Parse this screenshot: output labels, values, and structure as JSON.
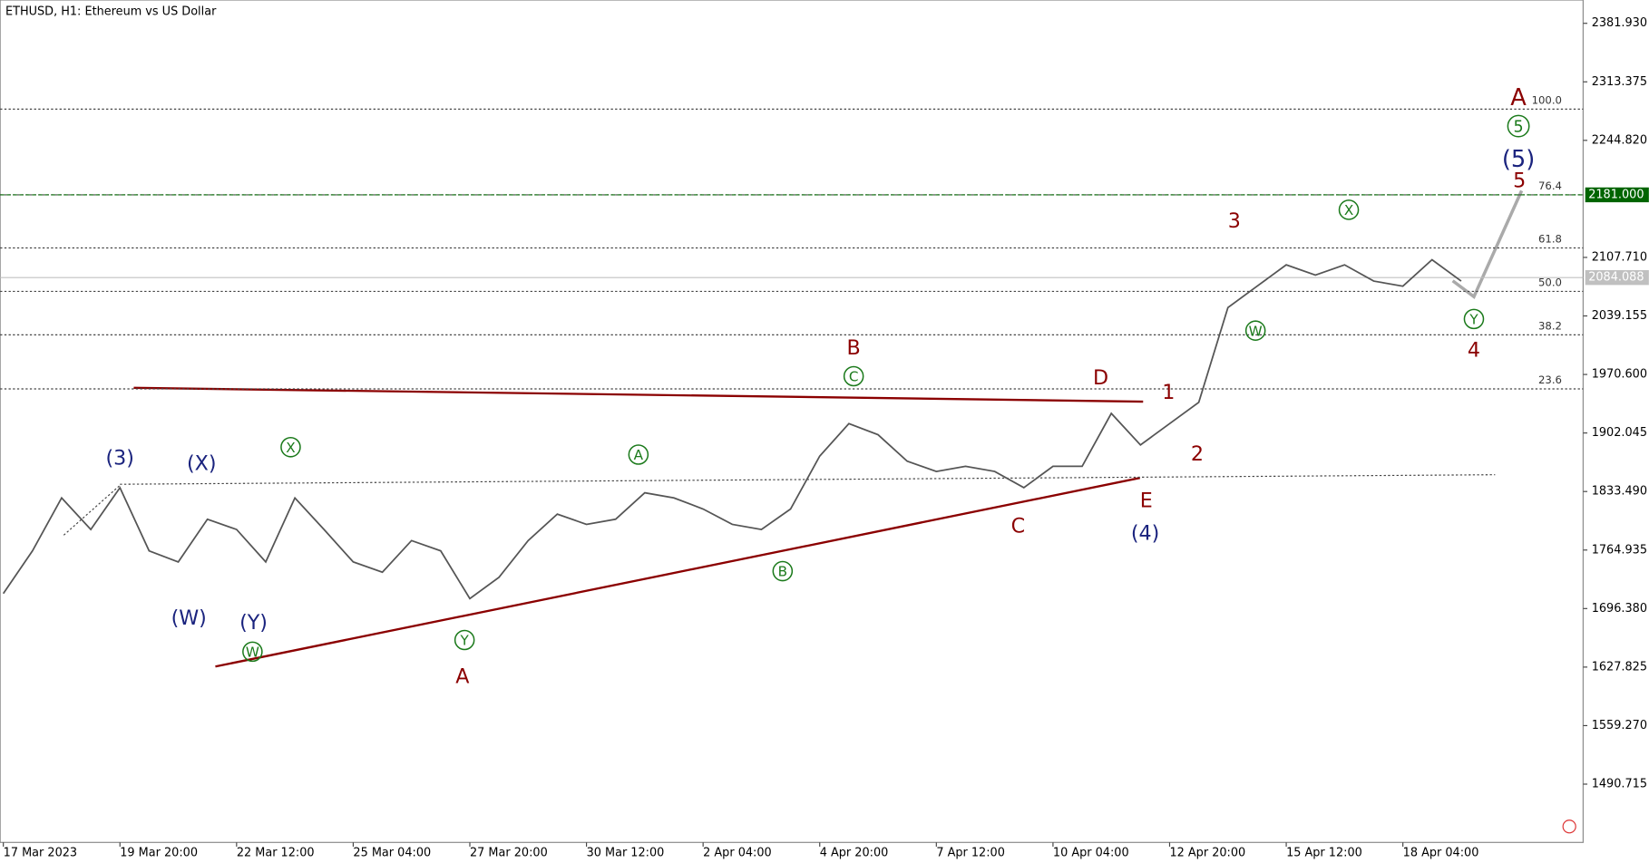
{
  "chart_data": {
    "type": "line",
    "title": "ETHUSD, H1:  Ethereum vs US Dollar",
    "categories": [
      "17 Mar 2023",
      null,
      null,
      null,
      "19 Mar 20:00",
      null,
      null,
      null,
      "22 Mar 12:00",
      null,
      null,
      null,
      "25 Mar 04:00",
      null,
      null,
      null,
      "27 Mar 20:00",
      null,
      null,
      null,
      "30 Mar 12:00",
      null,
      null,
      null,
      "2 Apr 04:00",
      null,
      null,
      null,
      "4 Apr 20:00",
      null,
      null,
      null,
      "7 Apr 12:00",
      null,
      null,
      null,
      "10 Apr 04:00",
      null,
      null,
      null,
      "12 Apr 20:00",
      null,
      null,
      null,
      "15 Apr 12:00",
      null,
      null,
      null,
      "18 Apr 04:00",
      null,
      null
    ],
    "series": [
      {
        "name": "ETHUSD",
        "color": "#555555",
        "values": [
          1714,
          1764,
          1826,
          1789,
          1838,
          1764,
          1751,
          1801,
          1789,
          1751,
          1826,
          1789,
          1751,
          1739,
          1776,
          1764,
          1708,
          1733,
          1776,
          1807,
          1795,
          1801,
          1832,
          1826,
          1813,
          1795,
          1789,
          1813,
          1875,
          1913,
          1900,
          1869,
          1857,
          1863,
          1857,
          1838,
          1863,
          1863,
          1925,
          1888,
          1913,
          1938,
          2049,
          2074,
          2099,
          2087,
          2099,
          2080,
          2074,
          2105,
          2080
        ]
      }
    ],
    "ylim": [
      1422.44,
      2409.24
    ],
    "yticks": [
      {
        "value": 2381.93,
        "label": "2381.930"
      },
      {
        "value": 2313.375,
        "label": "2313.375"
      },
      {
        "value": 2244.82,
        "label": "2244.820"
      },
      {
        "value": 2107.71,
        "label": "2107.710"
      },
      {
        "value": 2039.155,
        "label": "2039.155"
      },
      {
        "value": 1970.6,
        "label": "1970.600"
      },
      {
        "value": 1902.045,
        "label": "1902.045"
      },
      {
        "value": 1833.49,
        "label": "1833.490"
      },
      {
        "value": 1764.935,
        "label": "1764.935"
      },
      {
        "value": 1696.38,
        "label": "1696.380"
      },
      {
        "value": 1627.825,
        "label": "1627.825"
      },
      {
        "value": 1559.27,
        "label": "1559.270"
      },
      {
        "value": 1490.715,
        "label": "1490.715"
      }
    ],
    "fib_levels": [
      {
        "label": "100.0",
        "price": 2281.4
      },
      {
        "label": "76.4",
        "price": 2181.0
      },
      {
        "label": "61.8",
        "price": 2118.8
      },
      {
        "label": "50.0",
        "price": 2067.9
      },
      {
        "label": "38.2",
        "price": 2017.0
      },
      {
        "label": "23.6",
        "price": 1953.7
      }
    ],
    "price_labels": [
      {
        "value": 2181,
        "label": "2181.000",
        "color": "#006400"
      },
      {
        "value": 2084.088,
        "label": "2084.088",
        "color": "#c0c0c0"
      }
    ],
    "annotations": [
      {
        "text": "(3)",
        "color": "#1a237e"
      },
      {
        "text": "(X)",
        "color": "#1a237e"
      },
      {
        "text": "(W)",
        "color": "#1a237e"
      },
      {
        "text": "(Y)",
        "color": "#1a237e"
      },
      {
        "text": "W",
        "color": "#1b7a1b"
      },
      {
        "text": "X",
        "color": "#1b7a1b"
      },
      {
        "text": "Y",
        "color": "#1b7a1b"
      },
      {
        "text": "A",
        "color": "#8b0000"
      },
      {
        "text": "A",
        "color": "#1b7a1b"
      },
      {
        "text": "B",
        "color": "#1b7a1b"
      },
      {
        "text": "C",
        "color": "#1b7a1b"
      },
      {
        "text": "B",
        "color": "#8b0000"
      },
      {
        "text": "D",
        "color": "#8b0000"
      },
      {
        "text": "C",
        "color": "#8b0000"
      },
      {
        "text": "E",
        "color": "#8b0000"
      },
      {
        "text": "(4)",
        "color": "#1a237e"
      },
      {
        "text": "1",
        "color": "#8b0000"
      },
      {
        "text": "2",
        "color": "#8b0000"
      },
      {
        "text": "3",
        "color": "#8b0000"
      },
      {
        "text": "W",
        "color": "#1b7a1b"
      },
      {
        "text": "X",
        "color": "#1b7a1b"
      },
      {
        "text": "Y",
        "color": "#1b7a1b"
      },
      {
        "text": "4",
        "color": "#8b0000"
      },
      {
        "text": "5",
        "color": "#8b0000"
      },
      {
        "text": "(5)",
        "color": "#1a237e"
      },
      {
        "text": "5",
        "color": "#1b7a1b"
      },
      {
        "text": "A",
        "color": "#8b0000"
      }
    ]
  }
}
